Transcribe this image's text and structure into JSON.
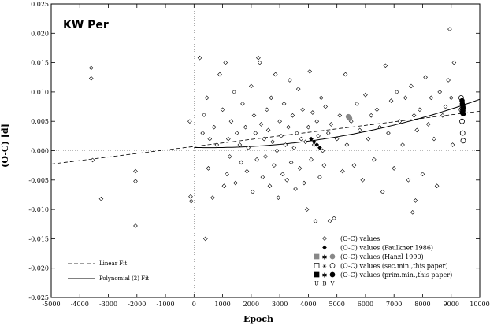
{
  "chart_data": {
    "type": "scatter",
    "title": "KW Per",
    "xlabel": "Epoch",
    "ylabel": "(O-C) [d]",
    "xlim": [
      -5000,
      10000
    ],
    "ylim": [
      -0.025,
      0.025
    ],
    "xticks": [
      -5000,
      -4000,
      -3000,
      -2000,
      -1000,
      0,
      1000,
      2000,
      3000,
      4000,
      5000,
      6000,
      7000,
      8000,
      9000,
      10000
    ],
    "yticks": [
      -0.025,
      -0.02,
      -0.015,
      -0.01,
      -0.005,
      0.0,
      0.005,
      0.01,
      0.015,
      0.02,
      0.025
    ],
    "xtick_labels": [
      "-5000",
      "-4000",
      "-3000",
      "-2000",
      "-1000",
      "0",
      "1000",
      "2000",
      "3000",
      "4000",
      "5000",
      "6000",
      "7000",
      "8000",
      "9000",
      "10000"
    ],
    "ytick_labels": [
      "-0.025",
      "-0.020",
      "-0.015",
      "-0.010",
      "-0.005",
      "0.000",
      "0.005",
      "0.010",
      "0.015",
      "0.020",
      "0.025"
    ],
    "grid": false,
    "reference_lines": {
      "x": 0,
      "y": 0
    },
    "series": [
      {
        "name": "(O-C) values",
        "marker": "open-diamond",
        "color": "#000000",
        "points": [
          [
            -3600,
            0.0141
          ],
          [
            -3600,
            0.0123
          ],
          [
            -3550,
            -0.0016
          ],
          [
            -3250,
            -0.0082
          ],
          [
            -2050,
            -0.0035
          ],
          [
            -2050,
            -0.0052
          ],
          [
            -2050,
            -0.0128
          ],
          [
            -150,
            0.005
          ],
          [
            -100,
            -0.0086
          ],
          [
            -120,
            -0.0078
          ],
          [
            200,
            0.0158
          ],
          [
            350,
            0.0061
          ],
          [
            400,
            -0.015
          ],
          [
            300,
            0.003
          ],
          [
            450,
            0.009
          ],
          [
            500,
            -0.003
          ],
          [
            550,
            0.002
          ],
          [
            650,
            -0.008
          ],
          [
            700,
            0.004
          ],
          [
            800,
            0.001
          ],
          [
            900,
            0.013
          ],
          [
            1000,
            0.007
          ],
          [
            1050,
            -0.006
          ],
          [
            1100,
            0.015
          ],
          [
            1150,
            -0.004
          ],
          [
            1200,
            0.002
          ],
          [
            1250,
            -0.001
          ],
          [
            1300,
            0.005
          ],
          [
            1400,
            0.01
          ],
          [
            1450,
            -0.0055
          ],
          [
            1500,
            0.003
          ],
          [
            1600,
            0.001
          ],
          [
            1650,
            -0.002
          ],
          [
            1700,
            0.008
          ],
          [
            1800,
            0.004
          ],
          [
            1850,
            -0.0035
          ],
          [
            1900,
            0.0005
          ],
          [
            2000,
            0.011
          ],
          [
            2050,
            -0.007
          ],
          [
            2100,
            0.006
          ],
          [
            2150,
            0.003
          ],
          [
            2200,
            -0.0015
          ],
          [
            2250,
            0.0158
          ],
          [
            2300,
            0.015
          ],
          [
            2350,
            0.0045
          ],
          [
            2400,
            -0.0045
          ],
          [
            2450,
            0.002
          ],
          [
            2500,
            -0.001
          ],
          [
            2550,
            0.007
          ],
          [
            2600,
            0.0035
          ],
          [
            2650,
            -0.006
          ],
          [
            2700,
            0.009
          ],
          [
            2750,
            0.0015
          ],
          [
            2800,
            -0.0025
          ],
          [
            2850,
            0.013
          ],
          [
            2900,
            0.0
          ],
          [
            2950,
            -0.008
          ],
          [
            3000,
            0.005
          ],
          [
            3050,
            0.0025
          ],
          [
            3100,
            -0.004
          ],
          [
            3150,
            0.008
          ],
          [
            3200,
            0.001
          ],
          [
            3250,
            -0.005
          ],
          [
            3300,
            0.004
          ],
          [
            3350,
            0.012
          ],
          [
            3400,
            -0.002
          ],
          [
            3450,
            0.006
          ],
          [
            3500,
            0.0005
          ],
          [
            3550,
            -0.0065
          ],
          [
            3600,
            0.003
          ],
          [
            3650,
            0.0105
          ],
          [
            3700,
            -0.003
          ],
          [
            3750,
            0.002
          ],
          [
            3800,
            0.007
          ],
          [
            3850,
            -0.0055
          ],
          [
            3900,
            0.0015
          ],
          [
            3950,
            -0.01
          ],
          [
            4000,
            0.004
          ],
          [
            4050,
            0.0135
          ],
          [
            4100,
            -0.0015
          ],
          [
            4150,
            0.0065
          ],
          [
            4200,
            0.001
          ],
          [
            4250,
            -0.012
          ],
          [
            4300,
            0.005
          ],
          [
            4350,
            0.0025
          ],
          [
            4400,
            -0.0045
          ],
          [
            4450,
            0.009
          ],
          [
            4500,
            0.0
          ],
          [
            4550,
            -0.0025
          ],
          [
            4600,
            0.0075
          ],
          [
            4700,
            0.003
          ],
          [
            4750,
            -0.012
          ],
          [
            4800,
            0.0045
          ],
          [
            4900,
            -0.0115
          ],
          [
            5000,
            0.002
          ],
          [
            5100,
            0.006
          ],
          [
            5200,
            -0.0035
          ],
          [
            5300,
            0.013
          ],
          [
            5350,
            0.001
          ],
          [
            5500,
            0.005
          ],
          [
            5600,
            -0.0025
          ],
          [
            5700,
            0.008
          ],
          [
            5800,
            0.0035
          ],
          [
            5900,
            -0.005
          ],
          [
            6000,
            0.0095
          ],
          [
            6100,
            0.002
          ],
          [
            6200,
            0.006
          ],
          [
            6300,
            -0.0015
          ],
          [
            6400,
            0.007
          ],
          [
            6500,
            0.004
          ],
          [
            6600,
            -0.007
          ],
          [
            6700,
            0.0145
          ],
          [
            6800,
            0.003
          ],
          [
            6900,
            0.0085
          ],
          [
            7000,
            -0.003
          ],
          [
            7100,
            0.01
          ],
          [
            7200,
            0.005
          ],
          [
            7300,
            0.001
          ],
          [
            7400,
            0.009
          ],
          [
            7500,
            -0.005
          ],
          [
            7600,
            0.011
          ],
          [
            7650,
            -0.0105
          ],
          [
            7700,
            0.006
          ],
          [
            7750,
            -0.0085
          ],
          [
            7800,
            0.0035
          ],
          [
            7900,
            0.007
          ],
          [
            8000,
            -0.004
          ],
          [
            8100,
            0.0125
          ],
          [
            8200,
            0.0045
          ],
          [
            8300,
            0.009
          ],
          [
            8400,
            0.002
          ],
          [
            8500,
            -0.006
          ],
          [
            8600,
            0.01
          ],
          [
            8700,
            0.006
          ],
          [
            8800,
            0.0075
          ],
          [
            8900,
            0.012
          ],
          [
            8950,
            0.0207
          ],
          [
            9000,
            0.009
          ],
          [
            9050,
            0.001
          ],
          [
            9100,
            0.015
          ]
        ]
      },
      {
        "name": "(O-C) values (Faulkner 1986)",
        "marker": "filled-diamond",
        "color": "#000000",
        "points": [
          [
            4100,
            0.002
          ],
          [
            4200,
            0.0015
          ],
          [
            4300,
            0.001
          ],
          [
            4400,
            0.0005
          ]
        ]
      },
      {
        "name": "(O-C) values (Hanzl 1990)",
        "marker": "filled-gray",
        "color": "#888888",
        "points": [
          [
            5400,
            0.0058
          ],
          [
            5450,
            0.0055
          ]
        ]
      },
      {
        "name": "(O-C) values (sec.min.,this paper)",
        "marker": "open",
        "color": "#000000",
        "points": [
          [
            9350,
            0.009
          ],
          [
            9380,
            0.005
          ],
          [
            9400,
            0.003
          ],
          [
            9420,
            0.0017
          ],
          [
            9360,
            0.007
          ]
        ]
      },
      {
        "name": "(O-C) values (prim.min.,this paper)",
        "marker": "filled",
        "color": "#000000",
        "points": [
          [
            9380,
            0.0085
          ],
          [
            9390,
            0.008
          ],
          [
            9400,
            0.0078
          ],
          [
            9410,
            0.0075
          ],
          [
            9420,
            0.0072
          ],
          [
            9400,
            0.007
          ],
          [
            9410,
            0.0068
          ],
          [
            9390,
            0.0065
          ],
          [
            9420,
            0.0063
          ]
        ]
      }
    ],
    "fits": [
      {
        "name": "Linear Fit",
        "style": "dashed",
        "type": "linear",
        "coefficients": [
          0.00072,
          6e-07
        ]
      },
      {
        "name": "Polynomial (2) Fit",
        "style": "solid",
        "type": "quadratic",
        "x_range": [
          0,
          10000
        ],
        "coefficients": [
          0.00055,
          -1e-07,
          9.2e-11
        ]
      }
    ],
    "legend": {
      "placement": "bottom-right",
      "entries": [
        "(O-C) values",
        "(O-C) values (Faulkner 1986)",
        "(O-C) values (Hanzl 1990)",
        "(O-C) values (sec.min.,this paper)",
        "(O-C) values (prim.min.,this paper)"
      ],
      "filter_labels": [
        "U",
        "B",
        "V"
      ]
    },
    "fit_legend": {
      "placement": "bottom-left",
      "entries": [
        "Linear Fit",
        "Polynomial (2) Fit"
      ]
    }
  }
}
